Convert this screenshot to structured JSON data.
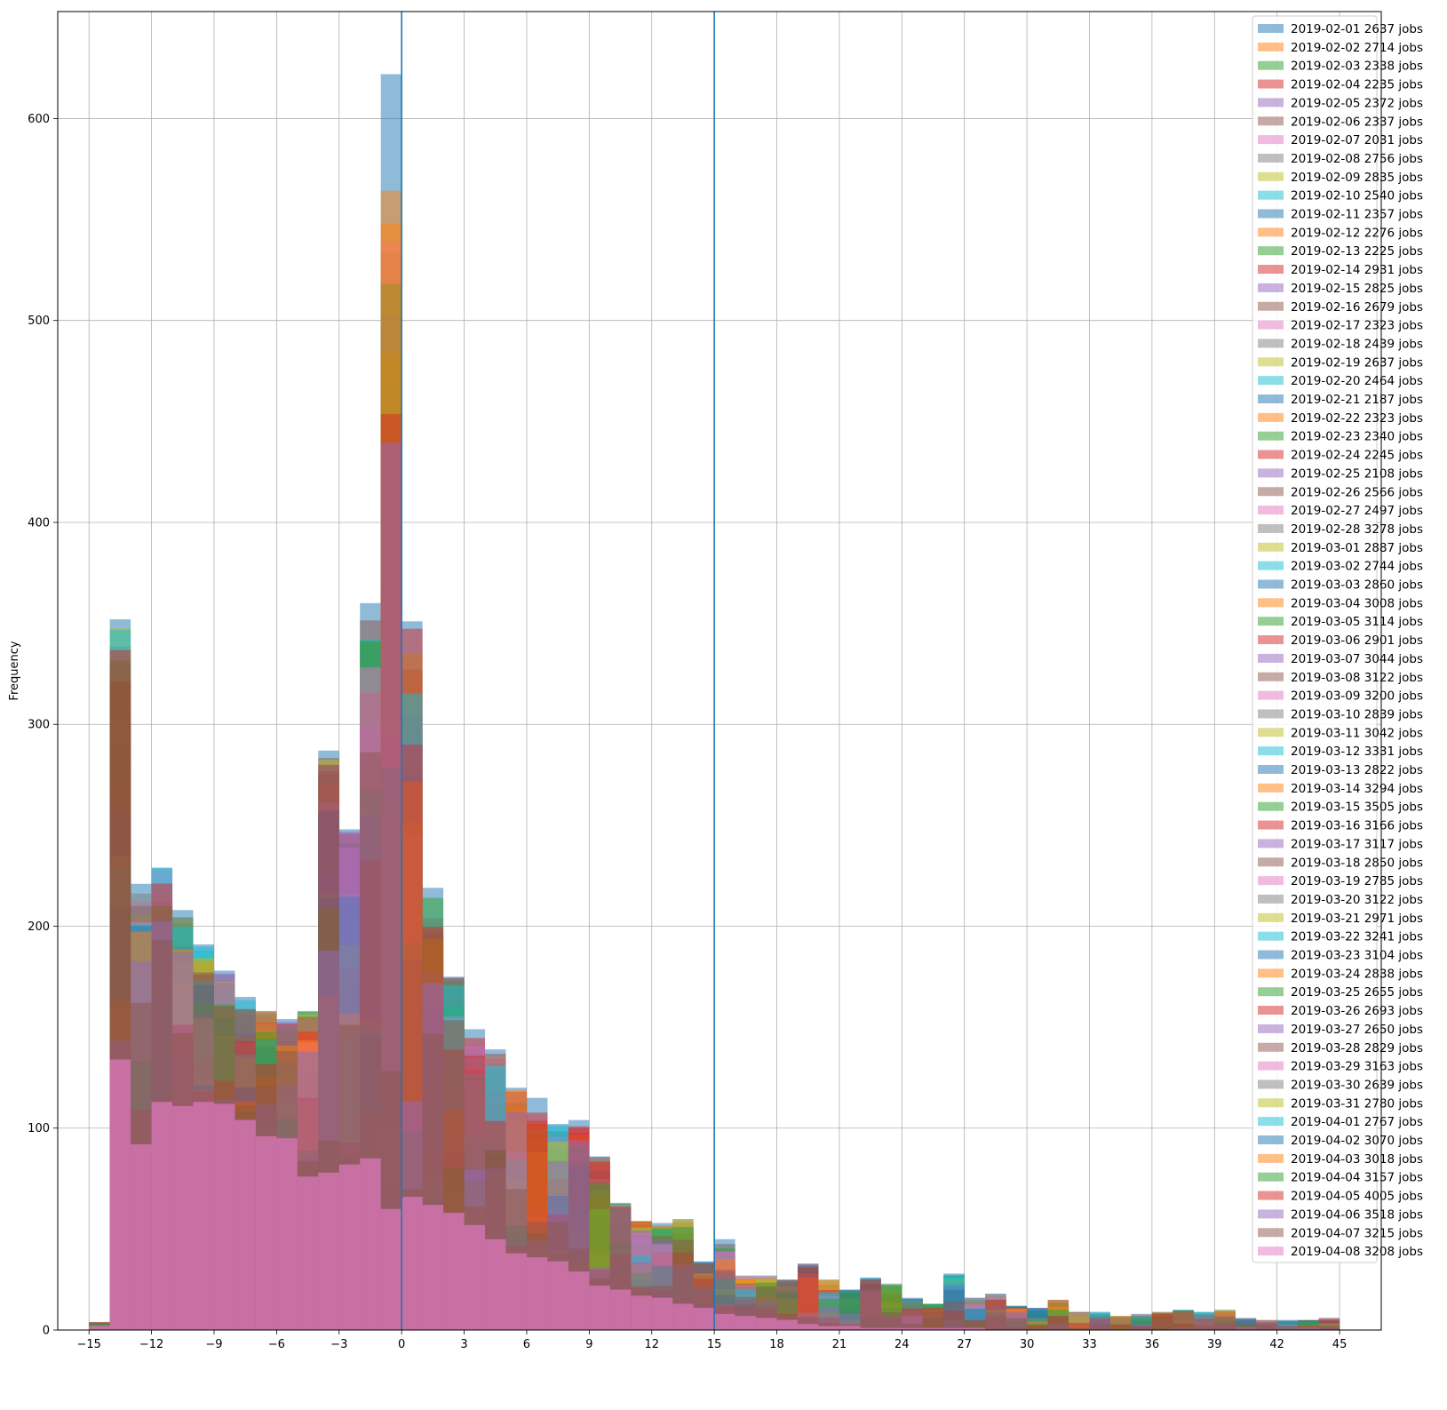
{
  "chart_data": {
    "type": "bar",
    "subtype": "overlapping-histogram",
    "title": "",
    "xlabel": "",
    "ylabel": "Frequency",
    "xlim": [
      -16.5,
      47.0
    ],
    "ylim": [
      0,
      653
    ],
    "xticks": [
      -15,
      -12,
      -9,
      -6,
      -3,
      0,
      3,
      6,
      9,
      12,
      15,
      18,
      21,
      24,
      27,
      30,
      33,
      36,
      39,
      42,
      45
    ],
    "yticks": [
      0,
      100,
      200,
      300,
      400,
      500,
      600
    ],
    "grid": true,
    "legend_position": "top-right",
    "series_opacity": 0.5,
    "vertical_lines": [
      0,
      15
    ],
    "vline_color": "#1f77b4",
    "bin_start": -15,
    "bin_width": 1,
    "bin_count": 60,
    "reference_series": [
      {
        "name": "max",
        "color": "#1f77b4",
        "values": [
          4,
          352,
          221,
          229,
          208,
          191,
          178,
          165,
          158,
          154,
          158,
          287,
          248,
          360,
          622,
          351,
          219,
          175,
          149,
          139,
          120,
          115,
          102,
          104,
          86,
          63,
          54,
          53,
          55,
          34,
          45,
          27,
          27,
          25,
          33,
          25,
          20,
          26,
          23,
          16,
          13,
          28,
          16,
          18,
          12,
          11,
          15,
          9,
          9,
          7,
          8,
          9,
          10,
          9,
          10,
          6,
          5,
          5,
          5,
          6
        ]
      },
      {
        "name": "min",
        "color": "#e377c2",
        "values": [
          2,
          134,
          92,
          113,
          111,
          113,
          112,
          104,
          96,
          95,
          76,
          78,
          82,
          85,
          60,
          66,
          62,
          58,
          52,
          45,
          38,
          36,
          34,
          29,
          22,
          20,
          17,
          16,
          13,
          11,
          8,
          7,
          6,
          5,
          3,
          2,
          2,
          1,
          1,
          1,
          1,
          1,
          1,
          0,
          0,
          0,
          0,
          0,
          0,
          0,
          0,
          0,
          0,
          0,
          0,
          0,
          0,
          0,
          0,
          0
        ]
      }
    ],
    "series": [
      {
        "name": "2019-02-01 2637 jobs",
        "color": "#1f77b4"
      },
      {
        "name": "2019-02-02 2714 jobs",
        "color": "#ff7f0e"
      },
      {
        "name": "2019-02-03 2338 jobs",
        "color": "#2ca02c"
      },
      {
        "name": "2019-02-04 2235 jobs",
        "color": "#d62728"
      },
      {
        "name": "2019-02-05 2372 jobs",
        "color": "#9467bd"
      },
      {
        "name": "2019-02-06 2337 jobs",
        "color": "#8c564b"
      },
      {
        "name": "2019-02-07 2031 jobs",
        "color": "#e377c2"
      },
      {
        "name": "2019-02-08 2756 jobs",
        "color": "#7f7f7f"
      },
      {
        "name": "2019-02-09 2835 jobs",
        "color": "#bcbd22"
      },
      {
        "name": "2019-02-10 2540 jobs",
        "color": "#17becf"
      },
      {
        "name": "2019-02-11 2357 jobs",
        "color": "#1f77b4"
      },
      {
        "name": "2019-02-12 2276 jobs",
        "color": "#ff7f0e"
      },
      {
        "name": "2019-02-13 2225 jobs",
        "color": "#2ca02c"
      },
      {
        "name": "2019-02-14 2931 jobs",
        "color": "#d62728"
      },
      {
        "name": "2019-02-15 2825 jobs",
        "color": "#9467bd"
      },
      {
        "name": "2019-02-16 2679 jobs",
        "color": "#8c564b"
      },
      {
        "name": "2019-02-17 2323 jobs",
        "color": "#e377c2"
      },
      {
        "name": "2019-02-18 2439 jobs",
        "color": "#7f7f7f"
      },
      {
        "name": "2019-02-19 2637 jobs",
        "color": "#bcbd22"
      },
      {
        "name": "2019-02-20 2464 jobs",
        "color": "#17becf"
      },
      {
        "name": "2019-02-21 2187 jobs",
        "color": "#1f77b4"
      },
      {
        "name": "2019-02-22 2323 jobs",
        "color": "#ff7f0e"
      },
      {
        "name": "2019-02-23 2340 jobs",
        "color": "#2ca02c"
      },
      {
        "name": "2019-02-24 2245 jobs",
        "color": "#d62728"
      },
      {
        "name": "2019-02-25 2108 jobs",
        "color": "#9467bd"
      },
      {
        "name": "2019-02-26 2566 jobs",
        "color": "#8c564b"
      },
      {
        "name": "2019-02-27 2497 jobs",
        "color": "#e377c2"
      },
      {
        "name": "2019-02-28 3278 jobs",
        "color": "#7f7f7f"
      },
      {
        "name": "2019-03-01 2887 jobs",
        "color": "#bcbd22"
      },
      {
        "name": "2019-03-02 2744 jobs",
        "color": "#17becf"
      },
      {
        "name": "2019-03-03 2860 jobs",
        "color": "#1f77b4"
      },
      {
        "name": "2019-03-04 3008 jobs",
        "color": "#ff7f0e"
      },
      {
        "name": "2019-03-05 3114 jobs",
        "color": "#2ca02c"
      },
      {
        "name": "2019-03-06 2901 jobs",
        "color": "#d62728"
      },
      {
        "name": "2019-03-07 3044 jobs",
        "color": "#9467bd"
      },
      {
        "name": "2019-03-08 3122 jobs",
        "color": "#8c564b"
      },
      {
        "name": "2019-03-09 3200 jobs",
        "color": "#e377c2"
      },
      {
        "name": "2019-03-10 2839 jobs",
        "color": "#7f7f7f"
      },
      {
        "name": "2019-03-11 3042 jobs",
        "color": "#bcbd22"
      },
      {
        "name": "2019-03-12 3331 jobs",
        "color": "#17becf"
      },
      {
        "name": "2019-03-13 2822 jobs",
        "color": "#1f77b4"
      },
      {
        "name": "2019-03-14 3294 jobs",
        "color": "#ff7f0e"
      },
      {
        "name": "2019-03-15 3505 jobs",
        "color": "#2ca02c"
      },
      {
        "name": "2019-03-16 3166 jobs",
        "color": "#d62728"
      },
      {
        "name": "2019-03-17 3117 jobs",
        "color": "#9467bd"
      },
      {
        "name": "2019-03-18 2850 jobs",
        "color": "#8c564b"
      },
      {
        "name": "2019-03-19 2785 jobs",
        "color": "#e377c2"
      },
      {
        "name": "2019-03-20 3122 jobs",
        "color": "#7f7f7f"
      },
      {
        "name": "2019-03-21 2971 jobs",
        "color": "#bcbd22"
      },
      {
        "name": "2019-03-22 3241 jobs",
        "color": "#17becf"
      },
      {
        "name": "2019-03-23 3104 jobs",
        "color": "#1f77b4"
      },
      {
        "name": "2019-03-24 2838 jobs",
        "color": "#ff7f0e"
      },
      {
        "name": "2019-03-25 2655 jobs",
        "color": "#2ca02c"
      },
      {
        "name": "2019-03-26 2693 jobs",
        "color": "#d62728"
      },
      {
        "name": "2019-03-27 2650 jobs",
        "color": "#9467bd"
      },
      {
        "name": "2019-03-28 2829 jobs",
        "color": "#8c564b"
      },
      {
        "name": "2019-03-29 3163 jobs",
        "color": "#e377c2"
      },
      {
        "name": "2019-03-30 2639 jobs",
        "color": "#7f7f7f"
      },
      {
        "name": "2019-03-31 2780 jobs",
        "color": "#bcbd22"
      },
      {
        "name": "2019-04-01 2767 jobs",
        "color": "#17becf"
      },
      {
        "name": "2019-04-02 3070 jobs",
        "color": "#1f77b4"
      },
      {
        "name": "2019-04-03 3018 jobs",
        "color": "#ff7f0e"
      },
      {
        "name": "2019-04-04 3157 jobs",
        "color": "#2ca02c"
      },
      {
        "name": "2019-04-05 4005 jobs",
        "color": "#d62728"
      },
      {
        "name": "2019-04-06 3518 jobs",
        "color": "#9467bd"
      },
      {
        "name": "2019-04-07 3215 jobs",
        "color": "#8c564b"
      },
      {
        "name": "2019-04-08 3208 jobs",
        "color": "#e377c2"
      }
    ]
  }
}
